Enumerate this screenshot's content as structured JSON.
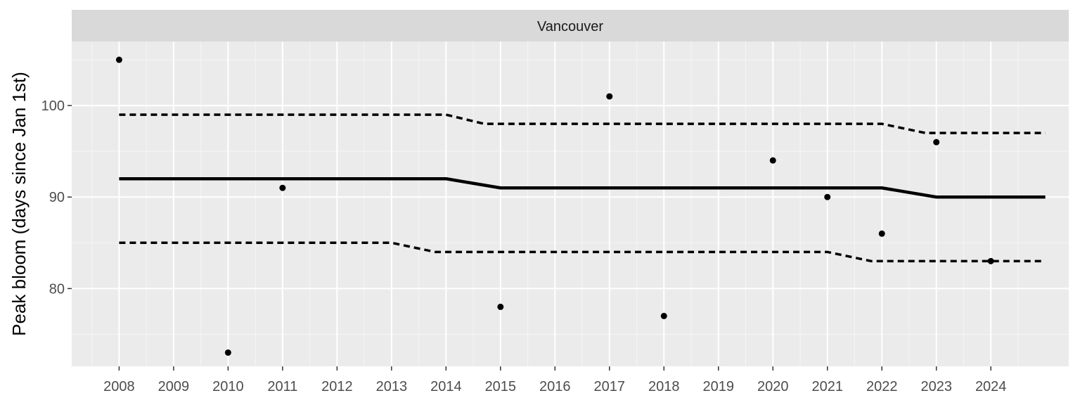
{
  "chart_data": {
    "type": "scatter",
    "facet": "Vancouver",
    "ylabel": "Peak bloom (days since Jan 1st)",
    "xlabel": "",
    "xlim": [
      2007.13,
      2025.43
    ],
    "ylim": [
      71.5,
      107.0
    ],
    "x_ticks": [
      2008,
      2009,
      2010,
      2011,
      2012,
      2013,
      2014,
      2015,
      2016,
      2017,
      2018,
      2019,
      2020,
      2021,
      2022,
      2023,
      2024
    ],
    "y_ticks": [
      80,
      90,
      100
    ],
    "grid": true,
    "series": [
      {
        "kind": "points",
        "x": [
          2008,
          2010,
          2011,
          2015,
          2017,
          2018,
          2020,
          2021,
          2022,
          2023,
          2024
        ],
        "y": [
          105,
          73,
          91,
          78,
          101,
          77,
          94,
          90,
          86,
          96,
          83
        ]
      },
      {
        "kind": "line",
        "style": "solid",
        "x": [
          2008,
          2014,
          2015,
          2022,
          2023,
          2025
        ],
        "y": [
          92,
          92,
          91,
          91,
          90,
          90
        ]
      },
      {
        "kind": "line",
        "style": "dashed",
        "x": [
          2008,
          2014,
          2014.7,
          2022,
          2022.8,
          2025
        ],
        "y": [
          99,
          99,
          98,
          98,
          97,
          97
        ]
      },
      {
        "kind": "line",
        "style": "dashed",
        "x": [
          2008,
          2013,
          2013.8,
          2021,
          2021.8,
          2025
        ],
        "y": [
          85,
          85,
          84,
          84,
          83,
          83
        ]
      }
    ]
  }
}
